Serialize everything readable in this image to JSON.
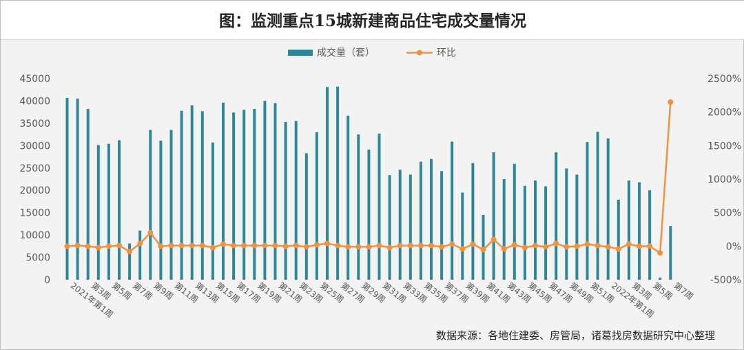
{
  "colors": {
    "bar": "#2e8798",
    "line": "#f0923e"
  },
  "chart_data": {
    "type": "bar",
    "title": "图：监测重点15城新建商品住宅成交量情况",
    "source": "数据来源：各地住建委、房管局，诸葛找房数据研究中心整理",
    "legend": [
      "成交量（套）",
      "环比"
    ],
    "legend_position": "top",
    "categories": [
      "2021年第1周",
      "第2周",
      "第3周",
      "第4周",
      "第5周",
      "第6周",
      "第7周",
      "第8周",
      "第9周",
      "第10周",
      "第11周",
      "第12周",
      "第13周",
      "第14周",
      "第15周",
      "第16周",
      "第17周",
      "第18周",
      "第19周",
      "第20周",
      "第21周",
      "第22周",
      "第23周",
      "第24周",
      "第25周",
      "第26周",
      "第27周",
      "第28周",
      "第29周",
      "第30周",
      "第31周",
      "第32周",
      "第33周",
      "第34周",
      "第35周",
      "第36周",
      "第37周",
      "第38周",
      "第39周",
      "第40周",
      "第41周",
      "第42周",
      "第43周",
      "第44周",
      "第45周",
      "第46周",
      "第47周",
      "第48周",
      "第49周",
      "第50周",
      "第51周",
      "第52周",
      "2022年第1周",
      "第2周",
      "第3周",
      "第4周",
      "第5周",
      "第6周",
      "第7周"
    ],
    "category_labels_shown": [
      "2021年第1周",
      "第3周",
      "第5周",
      "第7周",
      "第9周",
      "第11周",
      "第13周",
      "第15周",
      "第17周",
      "第19周",
      "第21周",
      "第23周",
      "第25周",
      "第27周",
      "第29周",
      "第31周",
      "第33周",
      "第35周",
      "第37周",
      "第39周",
      "第41周",
      "第43周",
      "第45周",
      "第47周",
      "第49周",
      "第51周",
      "2022年第1周",
      "第3周",
      "第5周",
      "第7周"
    ],
    "series": [
      {
        "name": "成交量（套）",
        "type": "bar",
        "axis": "left",
        "values": [
          40700,
          40500,
          38200,
          30100,
          30400,
          31200,
          8100,
          11000,
          33500,
          31100,
          33500,
          37800,
          39000,
          37700,
          30700,
          39600,
          37400,
          38000,
          38200,
          40000,
          39500,
          35300,
          35500,
          28300,
          33000,
          43100,
          43200,
          36700,
          32500,
          29100,
          32700,
          23400,
          24600,
          23500,
          26400,
          27000,
          24300,
          30900,
          19500,
          26100,
          14500,
          28500,
          22500,
          25900,
          21000,
          22200,
          20900,
          28500,
          24900,
          23500,
          30800,
          33100,
          31600,
          17900,
          22200,
          21800,
          20000,
          500,
          12000
        ]
      },
      {
        "name": "环比",
        "type": "line",
        "axis": "right",
        "unit": "%",
        "values": [
          0,
          10,
          0,
          -20,
          0,
          10,
          -80,
          40,
          200,
          0,
          10,
          10,
          10,
          10,
          -20,
          30,
          10,
          10,
          10,
          10,
          10,
          0,
          10,
          -10,
          20,
          40,
          10,
          -10,
          -10,
          -10,
          10,
          -20,
          10,
          10,
          10,
          10,
          -10,
          30,
          -40,
          30,
          -50,
          100,
          -40,
          20,
          -20,
          10,
          -10,
          40,
          -10,
          0,
          30,
          10,
          -10,
          -40,
          30,
          0,
          0,
          -100,
          2150
        ]
      }
    ],
    "y_left": {
      "min": 0,
      "max": 45000,
      "ticks": [
        "0",
        "5000",
        "10000",
        "15000",
        "20000",
        "25000",
        "30000",
        "35000",
        "40000",
        "45000"
      ]
    },
    "y_right": {
      "min": -500,
      "max": 2500,
      "ticks": [
        "-500%",
        "0%",
        "500%",
        "1000%",
        "1500%",
        "2000%",
        "2500%"
      ]
    },
    "grid": false
  }
}
